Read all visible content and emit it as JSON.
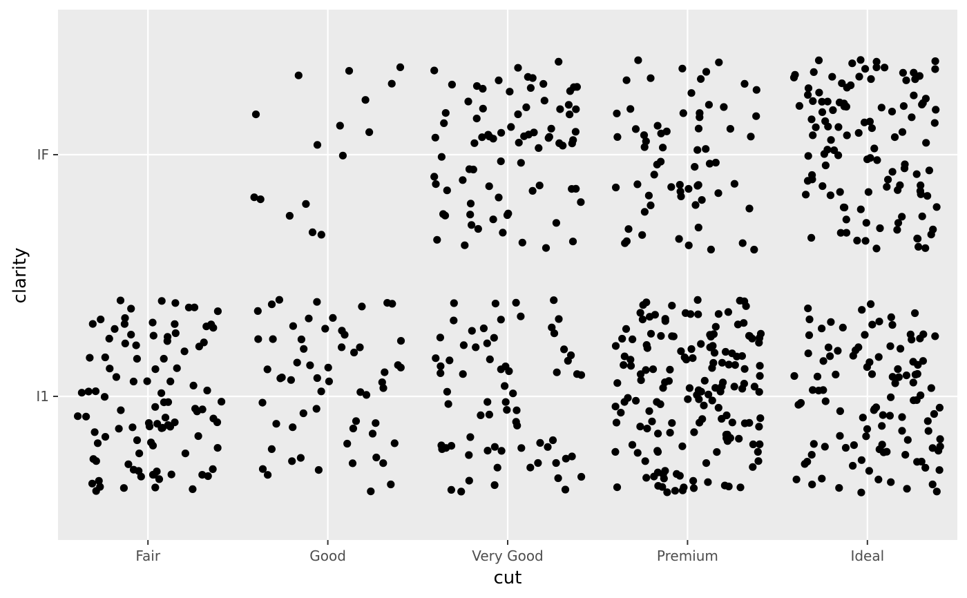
{
  "chart_data": {
    "type": "scatter",
    "jitter": true,
    "xlabel": "cut",
    "ylabel": "clarity",
    "x_categories": [
      "Fair",
      "Good",
      "Very Good",
      "Premium",
      "Ideal"
    ],
    "y_categories": [
      "I1",
      "IF"
    ],
    "grid": true,
    "point_color": "#000000",
    "panel_background": "#ebebeb",
    "grid_color": "#ffffff",
    "series": [
      {
        "x_category": "Fair",
        "y_category": "I1",
        "count": 100
      },
      {
        "x_category": "Good",
        "y_category": "I1",
        "count": 60
      },
      {
        "x_category": "Good",
        "y_category": "IF",
        "count": 16
      },
      {
        "x_category": "Very Good",
        "y_category": "I1",
        "count": 70
      },
      {
        "x_category": "Very Good",
        "y_category": "IF",
        "count": 80
      },
      {
        "x_category": "Premium",
        "y_category": "I1",
        "count": 160
      },
      {
        "x_category": "Premium",
        "y_category": "IF",
        "count": 65
      },
      {
        "x_category": "Ideal",
        "y_category": "I1",
        "count": 110
      },
      {
        "x_category": "Ideal",
        "y_category": "IF",
        "count": 115
      }
    ]
  }
}
